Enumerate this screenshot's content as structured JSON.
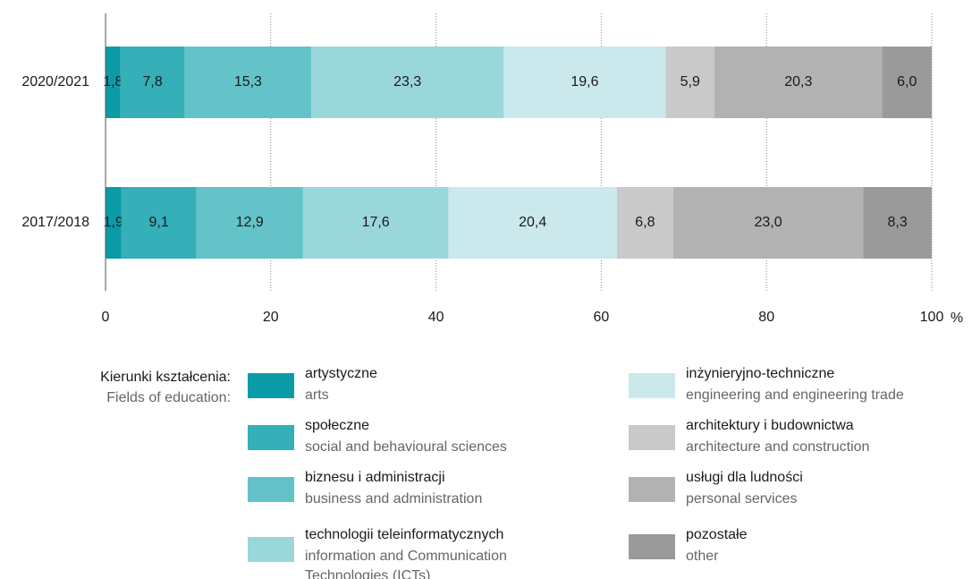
{
  "chart_data": {
    "type": "stacked-barh",
    "categories": [
      "2020/2021",
      "2017/2018"
    ],
    "series": [
      {
        "name": "artystyczne",
        "name_en": [
          "arts"
        ],
        "color": "#0b9ba6",
        "values": [
          1.8,
          1.9
        ],
        "value_labels": [
          "1,8",
          "1,9"
        ]
      },
      {
        "name": "społeczne",
        "name_en": [
          "social and behavioural sciences"
        ],
        "color": "#35afb8",
        "values": [
          7.8,
          9.1
        ],
        "value_labels": [
          "7,8",
          "9,1"
        ]
      },
      {
        "name": "biznesu i administracji",
        "name_en": [
          "business and administration"
        ],
        "color": "#63c3c8",
        "values": [
          15.3,
          12.9
        ],
        "value_labels": [
          "15,3",
          "12,9"
        ]
      },
      {
        "name": "technologii teleinformatycznych",
        "name_en": [
          "information and Communication",
          "Technologies (ICTs)"
        ],
        "color": "#9ad7db",
        "values": [
          23.3,
          17.6
        ],
        "value_labels": [
          "23,3",
          "17,6"
        ]
      },
      {
        "name": "inżynieryjno-techniczne",
        "name_en": [
          "engineering and engineering trade"
        ],
        "color": "#cbe9ec",
        "values": [
          19.6,
          20.4
        ],
        "value_labels": [
          "19,6",
          "20,4"
        ]
      },
      {
        "name": "architektury i budownictwa",
        "name_en": [
          "architecture and construction"
        ],
        "color": "#c9c9c9",
        "values": [
          5.9,
          6.8
        ],
        "value_labels": [
          "5,9",
          "6,8"
        ]
      },
      {
        "name": "usługi dla ludności",
        "name_en": [
          "personal services"
        ],
        "color": "#b2b2b2",
        "values": [
          20.3,
          23.0
        ],
        "value_labels": [
          "20,3",
          "23,0"
        ]
      },
      {
        "name": "pozostałe",
        "name_en": [
          "other"
        ],
        "color": "#9a9a9a",
        "values": [
          6.0,
          8.3
        ],
        "value_labels": [
          "6,0",
          "8,3"
        ]
      }
    ],
    "xlim": [
      0,
      100
    ],
    "xticks": [
      0,
      20,
      40,
      60,
      80,
      100
    ],
    "x_unit": "%",
    "grid": true,
    "legend_title": "Kierunki kształcenia:",
    "legend_title_en": "Fields of education:"
  }
}
